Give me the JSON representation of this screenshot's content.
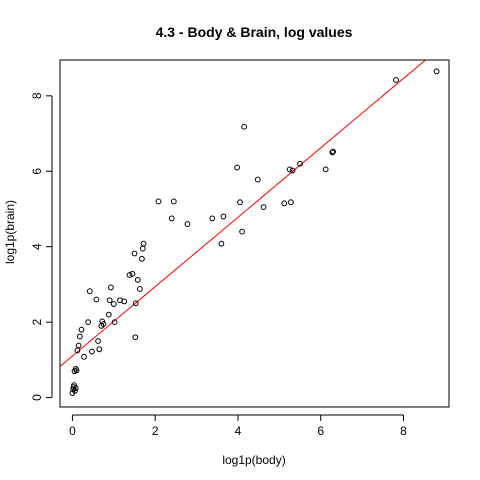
{
  "chart_data": {
    "type": "scatter",
    "title": "4.3 - Body & Brain, log values",
    "xlabel": "log1p(body)",
    "ylabel": "log1p(brain)",
    "xlim": [
      -0.3,
      9.1
    ],
    "ylim": [
      -0.25,
      8.95
    ],
    "x_ticks": [
      0,
      2,
      4,
      6,
      8
    ],
    "y_ticks": [
      0,
      2,
      4,
      6,
      8
    ],
    "grid": false,
    "marker": "open-circle",
    "point_color": "#000000",
    "fit_line": {
      "color": "#ff0000",
      "intercept": 1.1,
      "slope": 0.92
    },
    "points": [
      [
        0.0,
        0.12
      ],
      [
        0.02,
        0.22
      ],
      [
        0.03,
        0.28
      ],
      [
        0.04,
        0.33
      ],
      [
        0.06,
        0.18
      ],
      [
        0.08,
        0.25
      ],
      [
        0.05,
        0.7
      ],
      [
        0.08,
        0.76
      ],
      [
        0.1,
        0.72
      ],
      [
        0.12,
        1.25
      ],
      [
        0.15,
        1.38
      ],
      [
        0.18,
        1.62
      ],
      [
        0.22,
        1.8
      ],
      [
        0.28,
        1.08
      ],
      [
        0.38,
        2.0
      ],
      [
        0.42,
        2.82
      ],
      [
        0.47,
        1.22
      ],
      [
        0.58,
        2.6
      ],
      [
        0.62,
        1.5
      ],
      [
        0.65,
        1.28
      ],
      [
        0.7,
        1.9
      ],
      [
        0.72,
        2.02
      ],
      [
        0.75,
        1.95
      ],
      [
        0.88,
        2.2
      ],
      [
        0.9,
        2.58
      ],
      [
        0.93,
        2.92
      ],
      [
        1.0,
        2.48
      ],
      [
        1.02,
        2.0
      ],
      [
        1.15,
        2.58
      ],
      [
        1.25,
        2.55
      ],
      [
        1.38,
        3.25
      ],
      [
        1.45,
        3.28
      ],
      [
        1.5,
        3.82
      ],
      [
        1.52,
        1.6
      ],
      [
        1.53,
        2.5
      ],
      [
        1.58,
        3.12
      ],
      [
        1.63,
        2.88
      ],
      [
        1.68,
        3.68
      ],
      [
        1.7,
        3.95
      ],
      [
        1.72,
        4.08
      ],
      [
        2.08,
        5.2
      ],
      [
        2.4,
        4.75
      ],
      [
        2.45,
        5.2
      ],
      [
        2.78,
        4.6
      ],
      [
        3.38,
        4.75
      ],
      [
        3.6,
        4.08
      ],
      [
        3.65,
        4.8
      ],
      [
        3.98,
        6.1
      ],
      [
        4.05,
        5.18
      ],
      [
        4.1,
        4.4
      ],
      [
        4.15,
        7.18
      ],
      [
        4.48,
        5.78
      ],
      [
        4.62,
        5.05
      ],
      [
        5.12,
        5.15
      ],
      [
        5.25,
        6.05
      ],
      [
        5.28,
        5.18
      ],
      [
        5.32,
        6.02
      ],
      [
        5.5,
        6.2
      ],
      [
        6.12,
        6.05
      ],
      [
        6.28,
        6.5
      ],
      [
        6.3,
        6.52
      ],
      [
        7.82,
        8.42
      ],
      [
        8.8,
        8.65
      ]
    ]
  }
}
